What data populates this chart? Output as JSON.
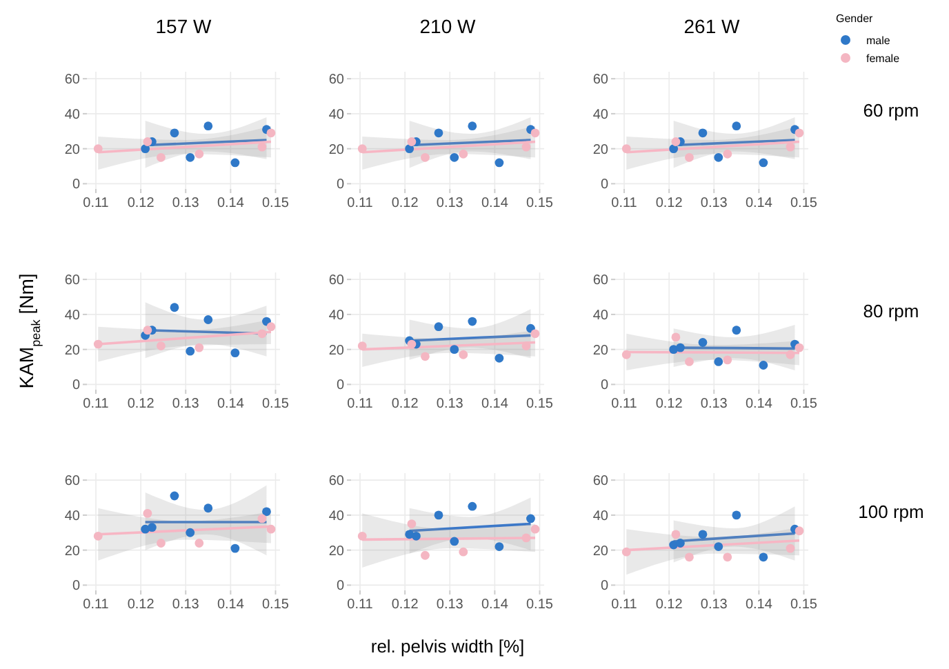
{
  "chart_data": [
    {
      "type": "scatter",
      "title": "157 W",
      "xlim": [
        0.108,
        0.151
      ],
      "ylim": [
        -3,
        64
      ],
      "xticks": [
        0.11,
        0.12,
        0.13,
        0.14,
        0.15
      ],
      "yticks": [
        0,
        20,
        40,
        60
      ],
      "grid": true,
      "marker": "circle",
      "series": [
        {
          "color": "#2f78c8",
          "x": [
            0.121,
            0.1225,
            0.1275,
            0.131,
            0.135,
            0.141,
            0.148
          ],
          "values": [
            20,
            24,
            29,
            15,
            33,
            12,
            31
          ]
        },
        {
          "color": "#f4b6c2",
          "x": [
            0.1105,
            0.1215,
            0.1245,
            0.133,
            0.147,
            0.149
          ],
          "values": [
            20,
            24,
            15,
            17,
            21,
            29
          ]
        },
        {
          "type": "line",
          "marker": "none",
          "color": "#3c78c8",
          "x": [
            0.121,
            0.1345,
            0.148
          ],
          "values": [
            22,
            23.5,
            25
          ],
          "lower": [
            9,
            18.5,
            14
          ],
          "upper": [
            36,
            28.5,
            38
          ]
        },
        {
          "type": "line",
          "marker": "none",
          "color": "#f7b6c4",
          "x": [
            0.1105,
            0.13,
            0.149
          ],
          "values": [
            18,
            21,
            24
          ],
          "lower": [
            8,
            17,
            15
          ],
          "upper": [
            27,
            25,
            33
          ]
        }
      ]
    },
    {
      "type": "scatter",
      "title": "210 W",
      "xlim": [
        0.108,
        0.151
      ],
      "ylim": [
        -3,
        64
      ],
      "xticks": [
        0.11,
        0.12,
        0.13,
        0.14,
        0.15
      ],
      "yticks": [
        0,
        20,
        40,
        60
      ],
      "grid": true,
      "marker": "circle",
      "series": [
        {
          "color": "#2f78c8",
          "x": [
            0.121,
            0.1225,
            0.1275,
            0.131,
            0.135,
            0.141,
            0.148
          ],
          "values": [
            20,
            24,
            29,
            15,
            33,
            12,
            31
          ]
        },
        {
          "color": "#f4b6c2",
          "x": [
            0.1105,
            0.1215,
            0.1245,
            0.133,
            0.147,
            0.149
          ],
          "values": [
            20,
            24,
            15,
            17,
            21,
            29
          ]
        },
        {
          "type": "line",
          "marker": "none",
          "color": "#3c78c8",
          "x": [
            0.121,
            0.1345,
            0.148
          ],
          "values": [
            22,
            23.5,
            25
          ],
          "lower": [
            9,
            18.5,
            14
          ],
          "upper": [
            36,
            28.5,
            38
          ]
        },
        {
          "type": "line",
          "marker": "none",
          "color": "#f7b6c4",
          "x": [
            0.1105,
            0.13,
            0.149
          ],
          "values": [
            18,
            21,
            24
          ],
          "lower": [
            8,
            17,
            15
          ],
          "upper": [
            27,
            25,
            33
          ]
        }
      ]
    },
    {
      "type": "scatter",
      "title": "261 W",
      "y2label": "60 rpm",
      "legend": "top right",
      "legend_title": "Gender",
      "xlim": [
        0.108,
        0.151
      ],
      "ylim": [
        -3,
        64
      ],
      "xticks": [
        0.11,
        0.12,
        0.13,
        0.14,
        0.15
      ],
      "yticks": [
        0,
        20,
        40,
        60
      ],
      "grid": true,
      "marker": "circle",
      "series": [
        {
          "name": "male",
          "color": "#2f78c8",
          "x": [
            0.121,
            0.1225,
            0.1275,
            0.131,
            0.135,
            0.141,
            0.148
          ],
          "values": [
            20,
            24,
            29,
            15,
            33,
            12,
            31
          ]
        },
        {
          "name": "female",
          "color": "#f4b6c2",
          "x": [
            0.1105,
            0.1215,
            0.1245,
            0.133,
            0.147,
            0.149
          ],
          "values": [
            20,
            24,
            15,
            17,
            21,
            29
          ]
        },
        {
          "type": "line",
          "marker": "none",
          "color": "#3c78c8",
          "x": [
            0.121,
            0.1345,
            0.148
          ],
          "values": [
            22,
            23.5,
            25
          ],
          "lower": [
            9,
            18.5,
            14
          ],
          "upper": [
            36,
            28.5,
            38
          ]
        },
        {
          "type": "line",
          "marker": "none",
          "color": "#f7b6c4",
          "x": [
            0.1105,
            0.13,
            0.149
          ],
          "values": [
            18,
            21,
            24
          ],
          "lower": [
            8,
            17,
            15
          ],
          "upper": [
            27,
            25,
            33
          ]
        }
      ]
    },
    {
      "type": "scatter",
      "ylabel": "KAM$_{peak}$ [Nm]",
      "xlim": [
        0.108,
        0.151
      ],
      "ylim": [
        -3,
        64
      ],
      "xticks": [
        0.11,
        0.12,
        0.13,
        0.14,
        0.15
      ],
      "yticks": [
        0,
        20,
        40,
        60
      ],
      "grid": true,
      "marker": "circle",
      "series": [
        {
          "color": "#2f78c8",
          "x": [
            0.121,
            0.1225,
            0.1275,
            0.131,
            0.135,
            0.141,
            0.148
          ],
          "values": [
            28,
            31,
            44,
            19,
            37,
            18,
            36
          ]
        },
        {
          "color": "#f4b6c2",
          "x": [
            0.1105,
            0.1215,
            0.1245,
            0.133,
            0.147,
            0.149
          ],
          "values": [
            23,
            31,
            22,
            21,
            29,
            33
          ]
        },
        {
          "type": "line",
          "marker": "none",
          "color": "#3c78c8",
          "x": [
            0.121,
            0.1345,
            0.148
          ],
          "values": [
            31,
            30,
            29
          ],
          "lower": [
            15,
            23,
            16
          ],
          "upper": [
            47,
            37,
            45
          ]
        },
        {
          "type": "line",
          "marker": "none",
          "color": "#f7b6c4",
          "x": [
            0.1105,
            0.13,
            0.149
          ],
          "values": [
            23,
            26.5,
            30
          ],
          "lower": [
            13,
            22,
            23
          ],
          "upper": [
            33,
            31,
            37
          ]
        }
      ]
    },
    {
      "type": "scatter",
      "xlim": [
        0.108,
        0.151
      ],
      "ylim": [
        -3,
        64
      ],
      "xticks": [
        0.11,
        0.12,
        0.13,
        0.14,
        0.15
      ],
      "yticks": [
        0,
        20,
        40,
        60
      ],
      "grid": true,
      "marker": "circle",
      "series": [
        {
          "color": "#2f78c8",
          "x": [
            0.121,
            0.1225,
            0.1275,
            0.131,
            0.135,
            0.141,
            0.148
          ],
          "values": [
            25,
            23,
            33,
            20,
            36,
            15,
            32
          ]
        },
        {
          "color": "#f4b6c2",
          "x": [
            0.1105,
            0.1215,
            0.1245,
            0.133,
            0.147,
            0.149
          ],
          "values": [
            22,
            23,
            16,
            17,
            22,
            29
          ]
        },
        {
          "type": "line",
          "marker": "none",
          "color": "#3c78c8",
          "x": [
            0.121,
            0.1345,
            0.148
          ],
          "values": [
            25,
            26.5,
            28
          ],
          "lower": [
            14,
            21,
            15
          ],
          "upper": [
            37,
            32,
            43
          ]
        },
        {
          "type": "line",
          "marker": "none",
          "color": "#f7b6c4",
          "x": [
            0.1105,
            0.13,
            0.149
          ],
          "values": [
            20,
            22,
            24
          ],
          "lower": [
            10,
            18,
            16
          ],
          "upper": [
            29,
            26,
            31
          ]
        }
      ]
    },
    {
      "type": "scatter",
      "y2label": "80 rpm",
      "xlim": [
        0.108,
        0.151
      ],
      "ylim": [
        -3,
        64
      ],
      "xticks": [
        0.11,
        0.12,
        0.13,
        0.14,
        0.15
      ],
      "yticks": [
        0,
        20,
        40,
        60
      ],
      "grid": true,
      "marker": "circle",
      "series": [
        {
          "color": "#2f78c8",
          "x": [
            0.121,
            0.1225,
            0.1275,
            0.131,
            0.135,
            0.141,
            0.148
          ],
          "values": [
            20,
            21,
            24,
            13,
            31,
            11,
            23
          ]
        },
        {
          "color": "#f4b6c2",
          "x": [
            0.1105,
            0.1215,
            0.1245,
            0.133,
            0.147,
            0.149
          ],
          "values": [
            17,
            27,
            13,
            14,
            17,
            21
          ]
        },
        {
          "type": "line",
          "marker": "none",
          "color": "#3c78c8",
          "x": [
            0.121,
            0.1345,
            0.148
          ],
          "values": [
            21,
            20.8,
            20.5
          ],
          "lower": [
            10,
            15,
            8
          ],
          "upper": [
            32,
            27,
            34
          ]
        },
        {
          "type": "line",
          "marker": "none",
          "color": "#f7b6c4",
          "x": [
            0.1105,
            0.13,
            0.149
          ],
          "values": [
            18.5,
            18.3,
            18
          ],
          "lower": [
            8,
            14,
            11
          ],
          "upper": [
            29,
            22.5,
            25
          ]
        }
      ]
    },
    {
      "type": "scatter",
      "xlim": [
        0.108,
        0.151
      ],
      "ylim": [
        -3,
        64
      ],
      "xticks": [
        0.11,
        0.12,
        0.13,
        0.14,
        0.15
      ],
      "yticks": [
        0,
        20,
        40,
        60
      ],
      "grid": true,
      "marker": "circle",
      "series": [
        {
          "color": "#2f78c8",
          "x": [
            0.121,
            0.1225,
            0.1275,
            0.131,
            0.135,
            0.141,
            0.148
          ],
          "values": [
            32,
            33,
            51,
            30,
            44,
            21,
            42
          ]
        },
        {
          "color": "#f4b6c2",
          "x": [
            0.1105,
            0.1215,
            0.1245,
            0.133,
            0.147,
            0.149
          ],
          "values": [
            28,
            41,
            24,
            24,
            38,
            32
          ]
        },
        {
          "type": "line",
          "marker": "none",
          "color": "#3c78c8",
          "x": [
            0.121,
            0.1345,
            0.148
          ],
          "values": [
            36,
            36,
            36
          ],
          "lower": [
            20,
            29,
            17
          ],
          "upper": [
            53,
            43,
            57
          ]
        },
        {
          "type": "line",
          "marker": "none",
          "color": "#f7b6c4",
          "x": [
            0.1105,
            0.13,
            0.149
          ],
          "values": [
            29,
            31.3,
            33.5
          ],
          "lower": [
            14,
            26,
            24
          ],
          "upper": [
            44,
            36.5,
            42
          ]
        }
      ]
    },
    {
      "type": "scatter",
      "xlabel": "rel. pelvis width [%]",
      "xlim": [
        0.108,
        0.151
      ],
      "ylim": [
        -3,
        64
      ],
      "xticks": [
        0.11,
        0.12,
        0.13,
        0.14,
        0.15
      ],
      "yticks": [
        0,
        20,
        40,
        60
      ],
      "grid": true,
      "marker": "circle",
      "series": [
        {
          "color": "#2f78c8",
          "x": [
            0.121,
            0.1225,
            0.1275,
            0.131,
            0.135,
            0.141,
            0.148
          ],
          "values": [
            29,
            28,
            40,
            25,
            45,
            22,
            38
          ]
        },
        {
          "color": "#f4b6c2",
          "x": [
            0.1105,
            0.1215,
            0.1245,
            0.133,
            0.147,
            0.149
          ],
          "values": [
            28,
            35,
            17,
            19,
            27,
            32
          ]
        },
        {
          "type": "line",
          "marker": "none",
          "color": "#3c78c8",
          "x": [
            0.121,
            0.1345,
            0.148
          ],
          "values": [
            31,
            33,
            35
          ],
          "lower": [
            18,
            27,
            20
          ],
          "upper": [
            44,
            39,
            50
          ]
        },
        {
          "type": "line",
          "marker": "none",
          "color": "#f7b6c4",
          "x": [
            0.1105,
            0.13,
            0.149
          ],
          "values": [
            26,
            26.5,
            27
          ],
          "lower": [
            10,
            21,
            19
          ],
          "upper": [
            41,
            32,
            35
          ]
        }
      ]
    },
    {
      "type": "scatter",
      "y2label": "100 rpm",
      "xlim": [
        0.108,
        0.151
      ],
      "ylim": [
        -3,
        64
      ],
      "xticks": [
        0.11,
        0.12,
        0.13,
        0.14,
        0.15
      ],
      "yticks": [
        0,
        20,
        40,
        60
      ],
      "grid": true,
      "marker": "circle",
      "series": [
        {
          "color": "#2f78c8",
          "x": [
            0.121,
            0.1225,
            0.1275,
            0.131,
            0.135,
            0.141,
            0.148
          ],
          "values": [
            23,
            24,
            29,
            22,
            40,
            16,
            32
          ]
        },
        {
          "color": "#f4b6c2",
          "x": [
            0.1105,
            0.1215,
            0.1245,
            0.133,
            0.147,
            0.149
          ],
          "values": [
            19,
            29,
            16,
            16,
            21,
            31
          ]
        },
        {
          "type": "line",
          "marker": "none",
          "color": "#3c78c8",
          "x": [
            0.121,
            0.1345,
            0.148
          ],
          "values": [
            25,
            27.3,
            29.5
          ],
          "lower": [
            13,
            22,
            14
          ],
          "upper": [
            37,
            32.5,
            45
          ]
        },
        {
          "type": "line",
          "marker": "none",
          "color": "#f7b6c4",
          "x": [
            0.1105,
            0.13,
            0.149
          ],
          "values": [
            20,
            22.8,
            25.5
          ],
          "lower": [
            6,
            18,
            17
          ],
          "upper": [
            32,
            27.5,
            33
          ]
        }
      ]
    }
  ]
}
